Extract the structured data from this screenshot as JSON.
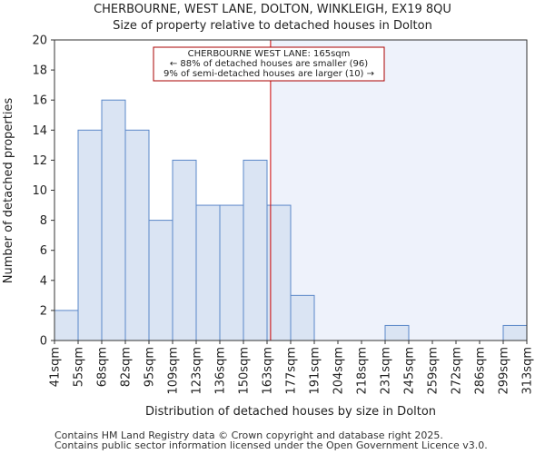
{
  "chart_data": {
    "type": "bar",
    "title": "CHERBOURNE, WEST LANE, DOLTON, WINKLEIGH, EX19 8QU",
    "subtitle": "Size of property relative to detached houses in Dolton",
    "xlabel": "Distribution of detached houses by size in Dolton",
    "ylabel": "Number of detached properties",
    "ylim": [
      0,
      20
    ],
    "yticks": [
      "0",
      "2",
      "4",
      "6",
      "8",
      "10",
      "12",
      "14",
      "16",
      "18",
      "20"
    ],
    "bin_edges": [
      "41sqm",
      "55sqm",
      "68sqm",
      "82sqm",
      "95sqm",
      "109sqm",
      "123sqm",
      "136sqm",
      "150sqm",
      "163sqm",
      "177sqm",
      "191sqm",
      "204sqm",
      "218sqm",
      "231sqm",
      "245sqm",
      "259sqm",
      "272sqm",
      "286sqm",
      "299sqm",
      "313sqm"
    ],
    "values": [
      2,
      14,
      16,
      14,
      8,
      12,
      9,
      9,
      12,
      9,
      3,
      0,
      0,
      0,
      1,
      0,
      0,
      0,
      0,
      1
    ],
    "property_size_sqm": 165,
    "marker_value_bins": 9.15,
    "annotation": {
      "line1": "CHERBOURNE WEST LANE: 165sqm",
      "line2": "← 88% of detached houses are smaller (96)",
      "line3": "9% of semi-detached houses are larger (10) →"
    },
    "colors": {
      "bar_fill": "#dae4f3",
      "bar_edge": "#5a87c8",
      "highlight_region": "#eef2fb",
      "marker_line": "#cc0000",
      "annotation_border": "#aa0000"
    }
  },
  "footer": {
    "line1": "Contains HM Land Registry data © Crown copyright and database right 2025.",
    "line2": "Contains public sector information licensed under the Open Government Licence v3.0."
  }
}
